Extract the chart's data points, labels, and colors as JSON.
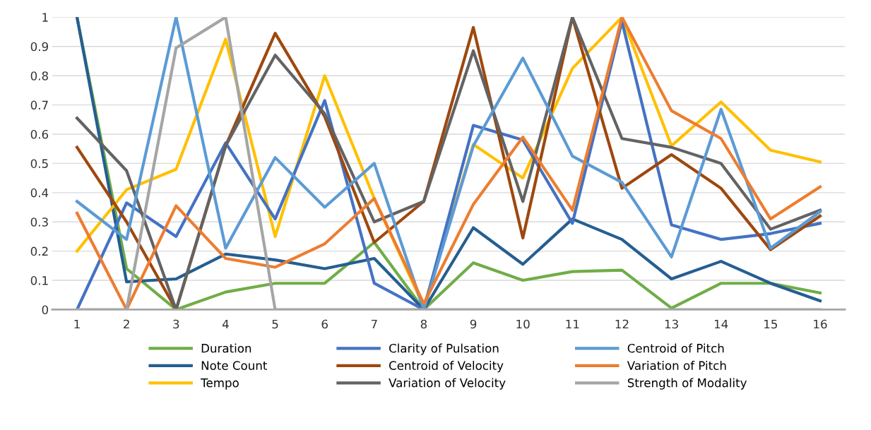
{
  "chart_data": {
    "type": "line",
    "categories": [
      "1",
      "2",
      "3",
      "4",
      "5",
      "6",
      "7",
      "8",
      "9",
      "10",
      "11",
      "12",
      "13",
      "14",
      "15",
      "16"
    ],
    "ylim": [
      0,
      1
    ],
    "yticks": [
      0,
      {
        "value": 0.1,
        "label": "0.1"
      },
      {
        "value": 0.2,
        "label": "0.2"
      },
      {
        "value": 0.3,
        "label": "0.3"
      },
      {
        "value": 0.4,
        "label": "0.4"
      },
      {
        "value": 0.5,
        "label": "0.5"
      },
      {
        "value": 0.6,
        "label": "0.6"
      },
      {
        "value": 0.7,
        "label": "0.7"
      },
      {
        "value": 0.8,
        "label": "0.8"
      },
      {
        "value": 0.9,
        "label": "0.9"
      },
      1
    ],
    "grid": "y",
    "legend": "bottom",
    "marker": "none",
    "line_style": "solid",
    "series": [
      {
        "name": "Duration",
        "color": "#70ad47",
        "values": [
          1.0,
          0.14,
          0.0,
          0.06,
          0.09,
          0.09,
          0.23,
          0.0,
          0.16,
          0.1,
          0.13,
          0.135,
          0.005,
          0.09,
          0.09,
          0.057
        ]
      },
      {
        "name": "Note Count",
        "color": "#255e91",
        "values": [
          1.0,
          0.095,
          0.105,
          0.19,
          0.17,
          0.14,
          0.175,
          0.0,
          0.28,
          0.155,
          0.31,
          0.24,
          0.105,
          0.165,
          0.09,
          0.03
        ]
      },
      {
        "name": "Tempo",
        "color": "#ffc000",
        "values": [
          0.2,
          0.41,
          0.48,
          0.925,
          0.25,
          0.8,
          0.38,
          0.01,
          0.565,
          0.45,
          0.825,
          1.0,
          0.56,
          0.71,
          0.545,
          0.505
        ]
      },
      {
        "name": "Clarity of Pulsation",
        "color": "#4472c4",
        "values": [
          0.0,
          0.365,
          0.25,
          0.57,
          0.31,
          0.715,
          0.09,
          0.0,
          0.63,
          0.58,
          0.295,
          0.985,
          0.29,
          0.24,
          0.26,
          0.295
        ]
      },
      {
        "name": "Centroid of Velocity",
        "color": "#9e480e",
        "values": [
          0.555,
          0.3,
          0.0,
          0.56,
          0.945,
          0.66,
          0.23,
          0.37,
          0.965,
          0.245,
          1.0,
          0.415,
          0.53,
          0.415,
          0.205,
          0.32
        ]
      },
      {
        "name": "Variation of Velocity",
        "color": "#636363",
        "values": [
          0.655,
          0.475,
          0.0,
          0.56,
          0.87,
          0.67,
          0.3,
          0.37,
          0.885,
          0.37,
          1.0,
          0.585,
          0.555,
          0.5,
          0.275,
          0.34
        ]
      },
      {
        "name": "Centroid of Pitch",
        "color": "#5b9bd5",
        "values": [
          0.37,
          0.24,
          1.0,
          0.21,
          0.52,
          0.35,
          0.5,
          0.0,
          0.56,
          0.86,
          0.525,
          0.435,
          0.18,
          0.685,
          0.21,
          0.335
        ]
      },
      {
        "name": "Variation of Pitch",
        "color": "#ed7d31",
        "values": [
          0.33,
          0.0,
          0.355,
          0.175,
          0.145,
          0.225,
          0.38,
          0.02,
          0.36,
          0.59,
          0.34,
          1.0,
          0.68,
          0.585,
          0.31,
          0.42
        ]
      },
      {
        "name": "Strength of Modality",
        "color": "#a5a5a5",
        "values": [
          0.0,
          0.0,
          0.895,
          1.0,
          0.0,
          0.0,
          0.0,
          0.0,
          0.0,
          0.0,
          0.0,
          0.0,
          0.0,
          0.0,
          0.0,
          0.0
        ]
      }
    ]
  }
}
